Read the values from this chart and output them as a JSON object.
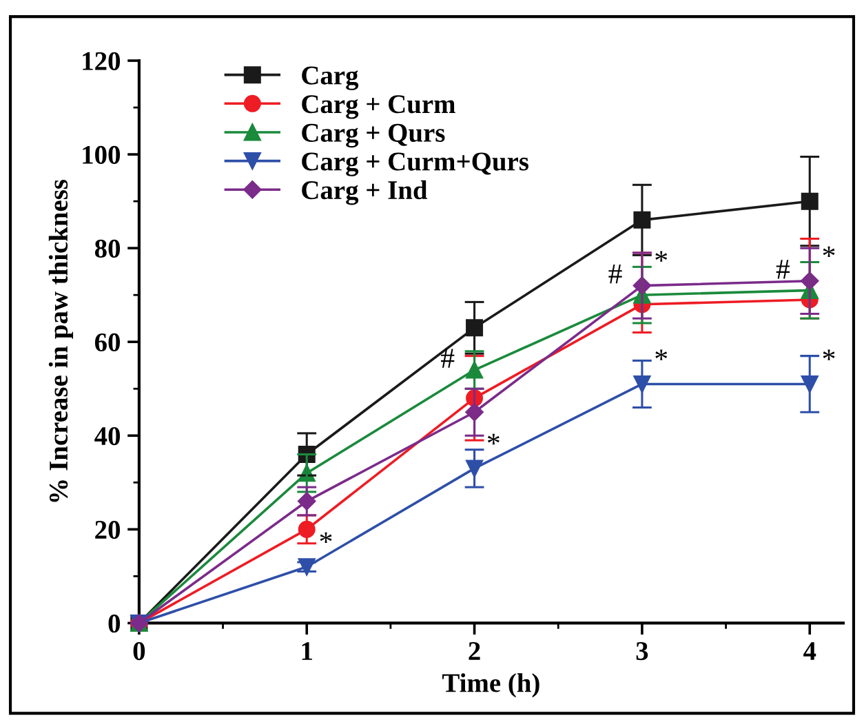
{
  "chart_data": {
    "type": "line",
    "xlabel": "Time (h)",
    "ylabel": "% Increase in paw thickness",
    "x": [
      0,
      1,
      2,
      3,
      4
    ],
    "xlim": [
      0,
      4.2
    ],
    "ylim": [
      0,
      120
    ],
    "xticks": [
      0,
      1,
      2,
      3,
      4
    ],
    "yticks": [
      0,
      20,
      40,
      60,
      80,
      100,
      120
    ],
    "grid": false,
    "legend": "top left",
    "line_style": "solid",
    "series": [
      {
        "name": "Carg",
        "color": "#1a1a1a",
        "marker": "square",
        "values": [
          0,
          36,
          63,
          86,
          90
        ],
        "errors": [
          null,
          4.5,
          5.5,
          7.5,
          9.5
        ]
      },
      {
        "name": "Carg + Curm",
        "color": "#ee1c24",
        "marker": "circle",
        "values": [
          0,
          20,
          48,
          68,
          69
        ],
        "errors": [
          null,
          3,
          9,
          [
            62,
            79
          ],
          [
            65,
            82
          ]
        ]
      },
      {
        "name": "Carg + Qurs",
        "color": "#1a8a3c",
        "marker": "triangle",
        "values": [
          0,
          32,
          54,
          70,
          71
        ],
        "errors": [
          null,
          4,
          4,
          6,
          6
        ]
      },
      {
        "name": "Carg + Curm+Qurs",
        "color": "#2e4fa8",
        "marker": "triangle_down",
        "values": [
          0,
          12,
          33,
          51,
          51
        ],
        "errors": [
          null,
          1,
          4,
          5,
          6
        ]
      },
      {
        "name": "Carg + Ind",
        "color": "#7b2b8a",
        "marker": "diamond",
        "values": [
          0,
          26,
          45,
          72,
          73
        ],
        "errors": [
          null,
          3,
          5,
          7,
          7
        ]
      }
    ],
    "annotations": [
      {
        "text": "*",
        "x": 1,
        "y": 12
      },
      {
        "text": "#",
        "x": 2,
        "y": 54
      },
      {
        "text": "*",
        "x": 2,
        "y": 33
      },
      {
        "text": "#",
        "x": 3,
        "y": 72
      },
      {
        "text": "*",
        "x": 3,
        "y": 72
      },
      {
        "text": "*",
        "x": 3,
        "y": 51
      },
      {
        "text": "#",
        "x": 4,
        "y": 73
      },
      {
        "text": "*",
        "x": 4,
        "y": 73
      },
      {
        "text": "*",
        "x": 4,
        "y": 51
      }
    ]
  }
}
